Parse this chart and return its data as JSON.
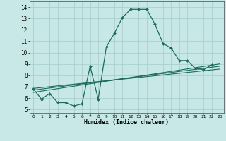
{
  "title": "",
  "xlabel": "Humidex (Indice chaleur)",
  "bg_color": "#c8e8e8",
  "grid_color": "#a8d0d0",
  "line_color": "#1a6b5a",
  "xlim": [
    -0.5,
    23.5
  ],
  "ylim": [
    4.7,
    14.5
  ],
  "xticks": [
    0,
    1,
    2,
    3,
    4,
    5,
    6,
    7,
    8,
    9,
    10,
    11,
    12,
    13,
    14,
    15,
    16,
    17,
    18,
    19,
    20,
    21,
    22,
    23
  ],
  "yticks": [
    5,
    6,
    7,
    8,
    9,
    10,
    11,
    12,
    13,
    14
  ],
  "main_x": [
    0,
    1,
    2,
    3,
    4,
    5,
    6,
    7,
    8,
    9,
    10,
    11,
    12,
    13,
    14,
    15,
    16,
    17,
    18,
    19,
    20,
    21,
    22
  ],
  "main_y": [
    6.8,
    5.9,
    6.4,
    5.6,
    5.6,
    5.3,
    5.5,
    8.8,
    5.9,
    10.5,
    11.7,
    13.1,
    13.8,
    13.8,
    13.8,
    12.5,
    10.8,
    10.4,
    9.3,
    9.3,
    8.6,
    8.5,
    8.9
  ],
  "line1_x": [
    0,
    23
  ],
  "line1_y": [
    6.5,
    9.0
  ],
  "line2_x": [
    0,
    23
  ],
  "line2_y": [
    6.7,
    8.8
  ],
  "line3_x": [
    0,
    23
  ],
  "line3_y": [
    6.85,
    8.55
  ]
}
